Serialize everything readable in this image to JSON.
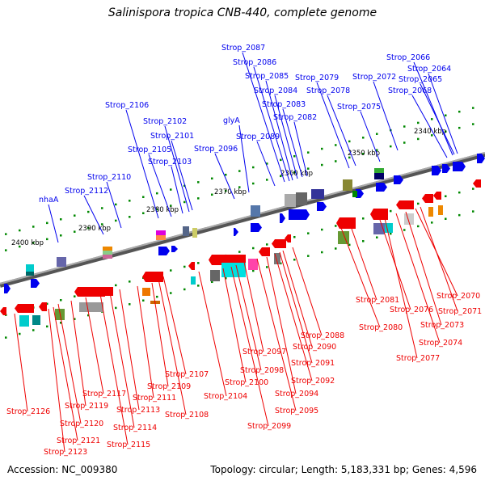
{
  "title": "Salinispora tropica CNB-440, complete genome",
  "accession": "Accession: NC_009380",
  "summary": "Topology: circular; Length: 5,183,331 bp; Genes: 4,596",
  "colors": {
    "forward": "#0000ee",
    "reverse": "#ee0000",
    "axis": "#777777",
    "tick": "#008800"
  },
  "scale_labels": [
    "2400 kbp",
    "2390 kbp",
    "2380 kbp",
    "2370 kbp",
    "2360 kbp",
    "2350 kbp",
    "2340 kbp"
  ],
  "forward_genes": [
    "Strop_2066",
    "Strop_2064",
    "Strop_2065",
    "Strop_2068",
    "Strop_2072",
    "Strop_2075",
    "Strop_2079",
    "Strop_2078",
    "Strop_2087",
    "Strop_2086",
    "Strop_2085",
    "Strop_2084",
    "Strop_2083",
    "Strop_2082",
    "Strop_2089",
    "Strop_2096",
    "glyA",
    "Strop_2102",
    "Strop_2101",
    "Strop_2103",
    "Strop_2105",
    "Strop_2106",
    "Strop_2110",
    "Strop_2112",
    "nhaA"
  ],
  "reverse_genes": [
    "Strop_2070",
    "Strop_2071",
    "Strop_2073",
    "Strop_2074",
    "Strop_2076",
    "Strop_2077",
    "Strop_2081",
    "Strop_2080",
    "Strop_2088",
    "Strop_2090",
    "Strop_2091",
    "Strop_2092",
    "Strop_2094",
    "Strop_2095",
    "Strop_2097",
    "Strop_2098",
    "Strop_2099",
    "Strop_2100",
    "Strop_2104",
    "Strop_2107",
    "Strop_2108",
    "Strop_2109",
    "Strop_2111",
    "Strop_2113",
    "Strop_2114",
    "Strop_2115",
    "Strop_2117",
    "Strop_2119",
    "Strop_2120",
    "Strop_2121",
    "Strop_2123",
    "Strop_2126"
  ]
}
